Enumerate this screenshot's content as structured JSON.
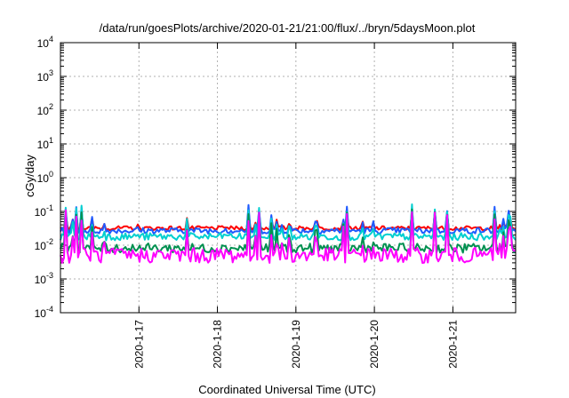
{
  "chart_data": {
    "type": "line",
    "title": "/data/run/goesPlots/archive/2020-01-21/21:00/flux/../bryn/5daysMoon.plot",
    "xlabel": "Coordinated Universal Time (UTC)",
    "ylabel": "cGy/day",
    "yscale": "log",
    "ylim": [
      0.0001,
      10000
    ],
    "xlim": [
      0,
      5.8
    ],
    "y_ticks": [
      {
        "base": "10",
        "exp": "-4"
      },
      {
        "base": "10",
        "exp": "-3"
      },
      {
        "base": "10",
        "exp": "-2"
      },
      {
        "base": "10",
        "exp": "-1"
      },
      {
        "base": "10",
        "exp": "0"
      },
      {
        "base": "10",
        "exp": "1"
      },
      {
        "base": "10",
        "exp": "2"
      },
      {
        "base": "10",
        "exp": "3"
      },
      {
        "base": "10",
        "exp": "4"
      }
    ],
    "x_ticks": [
      {
        "label": "2020-1-17",
        "x": 1
      },
      {
        "label": "2020-1-18",
        "x": 2
      },
      {
        "label": "2020-1-19",
        "x": 3
      },
      {
        "label": "2020-1-20",
        "x": 4
      },
      {
        "label": "2020-1-21",
        "x": 5
      }
    ],
    "grid": true,
    "series": [
      {
        "color": "#ff0000",
        "base": 0.032,
        "spread": 0.12
      },
      {
        "color": "#1e5aff",
        "base": 0.027,
        "spread": 0.18
      },
      {
        "color": "#00cfd0",
        "base": 0.018,
        "spread": 0.22
      },
      {
        "color": "#009050",
        "base": 0.0082,
        "spread": 0.28
      },
      {
        "color": "#ff00ff",
        "base": 0.005,
        "spread": 0.45
      }
    ],
    "samples": 260,
    "seed": 7
  }
}
